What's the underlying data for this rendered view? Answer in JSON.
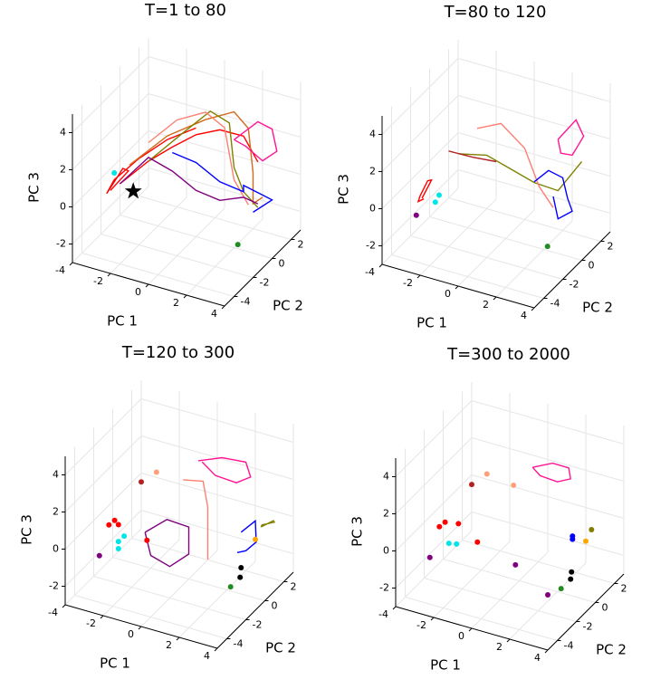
{
  "chart_data": [
    {
      "type": "scatter3d",
      "title": "T=1 to 80",
      "xlabel": "PC 1",
      "ylabel": "PC 2",
      "zlabel": "PC 3",
      "xlim": [
        -4,
        4
      ],
      "ylim": [
        -5,
        3
      ],
      "zlim": [
        -3,
        5
      ],
      "xticks": [
        -4,
        -2,
        0,
        2,
        4
      ],
      "yticks": [
        -4,
        -2,
        0,
        2
      ],
      "zticks": [
        -2,
        0,
        2,
        4
      ],
      "grid": true,
      "series": [
        {
          "color": "#ff0000",
          "mode": "lines",
          "x": [
            -3.5,
            -2.8,
            -2.6,
            -3.0,
            -3.6,
            -3.4,
            -2.5,
            -1.5,
            -0.5
          ],
          "y": [
            -2,
            -1.5,
            -2.5,
            -3,
            -2.2,
            -1.8,
            -1,
            0,
            1
          ],
          "z": [
            -0.5,
            0.5,
            1.2,
            0.3,
            -0.6,
            0,
            1,
            1.8,
            2.2
          ]
        },
        {
          "color": "#ff0000",
          "mode": "lines",
          "x": [
            -3,
            -2,
            -1,
            0,
            1,
            2,
            2.5
          ],
          "y": [
            -2,
            -1,
            -0.5,
            0,
            0.5,
            1,
            1.5
          ],
          "z": [
            0,
            1,
            1.8,
            2.5,
            2.8,
            2.5,
            1
          ]
        },
        {
          "color": "#d2691e",
          "mode": "lines",
          "x": [
            -3,
            -1.5,
            0,
            1,
            1.5,
            2,
            2.5,
            3
          ],
          "y": [
            -1,
            0,
            1,
            2,
            2.5,
            2,
            1,
            1
          ],
          "z": [
            0.5,
            2,
            2.8,
            3,
            2,
            0,
            -1,
            -0.5
          ]
        },
        {
          "color": "#808000",
          "mode": "lines",
          "x": [
            -2,
            -1,
            0,
            0.5,
            1,
            2,
            3
          ],
          "y": [
            -1,
            0.5,
            1.5,
            2.5,
            2,
            1,
            0.5
          ],
          "z": [
            1,
            2,
            3,
            2,
            0,
            -0.5,
            -0.8
          ]
        },
        {
          "color": "#ff1493",
          "mode": "lines",
          "x": [
            1,
            2,
            2.5,
            3,
            2.5,
            1.5,
            1
          ],
          "y": [
            2,
            2.5,
            3,
            2.5,
            2,
            2.2,
            2
          ],
          "z": [
            1.5,
            2.5,
            2,
            1.2,
            0.8,
            1.2,
            1.5
          ]
        },
        {
          "color": "#fa8072",
          "mode": "lines",
          "x": [
            -2,
            -1,
            0,
            0.5,
            1.5,
            2.5
          ],
          "y": [
            -1,
            0,
            1,
            2,
            1,
            0.5
          ],
          "z": [
            2,
            3,
            3.2,
            2,
            0,
            -0.8
          ]
        },
        {
          "color": "#0000ff",
          "mode": "lines",
          "x": [
            -1,
            0,
            1,
            2,
            2.5,
            3,
            3.5,
            3
          ],
          "y": [
            -0.5,
            0,
            0.5,
            1,
            0,
            0.5,
            1,
            0
          ],
          "z": [
            1.5,
            1,
            0,
            -0.5,
            0.5,
            0,
            -0.5,
            -0.8
          ]
        },
        {
          "color": "#800080",
          "mode": "lines",
          "x": [
            -3,
            -2,
            -1,
            0,
            1,
            2,
            3
          ],
          "y": [
            -2,
            -1,
            -0.5,
            0,
            0.5,
            1,
            0.5
          ],
          "z": [
            0,
            1.2,
            0.5,
            -0.5,
            -1,
            -0.8,
            -0.6
          ]
        },
        {
          "color": "#00e5e5",
          "mode": "markers",
          "x": [
            -3.3
          ],
          "y": [
            -2
          ],
          "z": [
            0.5
          ]
        },
        {
          "color": "#228b22",
          "mode": "markers",
          "x": [
            3.7
          ],
          "y": [
            -3
          ],
          "z": [
            -0.8
          ]
        },
        {
          "color": "#000000",
          "mode": "markers",
          "marker": "star",
          "x": [
            -2.3
          ],
          "y": [
            -2
          ],
          "z": [
            -0.2
          ]
        }
      ]
    },
    {
      "type": "scatter3d",
      "title": "T=80 to 120",
      "xlabel": "PC 1",
      "ylabel": "PC 2",
      "zlabel": "PC 3",
      "xlim": [
        -4,
        4
      ],
      "ylim": [
        -5,
        3
      ],
      "zlim": [
        -3,
        5
      ],
      "xticks": [
        -4,
        -2,
        0,
        2,
        4
      ],
      "yticks": [
        -4,
        -2,
        0,
        2
      ],
      "zticks": [
        -2,
        0,
        2,
        4
      ],
      "grid": true,
      "series": [
        {
          "color": "#ff0000",
          "mode": "lines",
          "x": [
            -3.4,
            -3.0,
            -2.9,
            -3.2,
            -3.5,
            -3.3
          ],
          "y": [
            -2,
            -1.8,
            -2.4,
            -2.6,
            -2.2,
            -2
          ],
          "z": [
            -0.8,
            0.2,
            0.5,
            -0.3,
            -0.9,
            -0.8
          ]
        },
        {
          "color": "#00e5e5",
          "mode": "markers",
          "x": [
            -2.7,
            -2.6
          ],
          "y": [
            -2,
            -1.8
          ],
          "z": [
            -0.8,
            -0.5
          ]
        },
        {
          "color": "#800080",
          "mode": "markers",
          "x": [
            -3.7
          ],
          "y": [
            -2
          ],
          "z": [
            -1.8
          ]
        },
        {
          "color": "#808000",
          "mode": "lines",
          "x": [
            -2,
            -1,
            0,
            1,
            2,
            3
          ],
          "y": [
            -1,
            0,
            0.5,
            1,
            1.5,
            2
          ],
          "z": [
            1.5,
            1.2,
            0.5,
            -0.2,
            -0.6,
            1
          ]
        },
        {
          "color": "#fa8072",
          "mode": "lines",
          "x": [
            -1.5,
            -0.5,
            0.5,
            1.5,
            2.5
          ],
          "y": [
            0,
            0.5,
            1,
            0.5,
            0
          ],
          "z": [
            2.5,
            2.8,
            1.5,
            0,
            -0.6
          ]
        },
        {
          "color": "#b22222",
          "mode": "lines",
          "x": [
            -2.5,
            -1.5,
            -0.5
          ],
          "y": [
            -1,
            -0.5,
            0
          ],
          "z": [
            1.5,
            1.2,
            1
          ]
        },
        {
          "color": "#0000ff",
          "mode": "lines",
          "x": [
            1.5,
            2,
            2.5,
            3,
            3.5,
            3,
            2.5
          ],
          "y": [
            0,
            0.5,
            1,
            0.5,
            0,
            -0.5,
            0
          ],
          "z": [
            0.5,
            1,
            0.5,
            -0.2,
            -0.5,
            -0.8,
            0
          ]
        },
        {
          "color": "#ff1493",
          "mode": "lines",
          "x": [
            1.5,
            2.2,
            2.8,
            2.5,
            1.8,
            1.5
          ],
          "y": [
            2.5,
            3,
            2.6,
            2,
            2.2,
            2.5
          ],
          "z": [
            1.5,
            2.5,
            2,
            1.2,
            1,
            1.5
          ]
        },
        {
          "color": "#228b22",
          "mode": "markers",
          "x": [
            3.7
          ],
          "y": [
            -3
          ],
          "z": [
            -0.8
          ]
        }
      ]
    },
    {
      "type": "scatter3d",
      "title": "T=120 to 300",
      "xlabel": "PC 1",
      "ylabel": "PC 2",
      "zlabel": "PC 3",
      "xlim": [
        -4,
        4
      ],
      "ylim": [
        -5,
        3
      ],
      "zlim": [
        -3,
        5
      ],
      "xticks": [
        -4,
        -2,
        0,
        2,
        4
      ],
      "yticks": [
        -4,
        -2,
        0,
        2
      ],
      "zticks": [
        -2,
        0,
        2,
        4
      ],
      "grid": true,
      "series": [
        {
          "color": "#ff1493",
          "mode": "lines",
          "x": [
            -0.5,
            0.5,
            1.5,
            2,
            1.5,
            0.5,
            -0.3
          ],
          "y": [
            2,
            2.5,
            3,
            2.5,
            2,
            1.8,
            2
          ],
          "z": [
            2.2,
            2.4,
            2.2,
            1.8,
            1.6,
            1.8,
            2.2
          ]
        },
        {
          "color": "#800080",
          "mode": "lines",
          "x": [
            -1.8,
            -0.9,
            0,
            0.5,
            0,
            -1,
            -1.8
          ],
          "y": [
            -1,
            -0.5,
            0,
            -1,
            -2,
            -2,
            -1
          ],
          "z": [
            -0.5,
            0.2,
            -0.2,
            -1,
            -1.3,
            -1,
            -0.5
          ]
        },
        {
          "color": "#fa8072",
          "mode": "lines",
          "x": [
            -0.8,
            0,
            0.5,
            1,
            1.5
          ],
          "y": [
            1,
            1.5,
            1,
            0,
            -1
          ],
          "z": [
            1.6,
            1.5,
            0.5,
            -0.5,
            -1
          ]
        },
        {
          "color": "#0000ff",
          "mode": "lines",
          "x": [
            2.5,
            3,
            3.3,
            3,
            2.8
          ],
          "y": [
            0.5,
            1,
            0.5,
            0,
            -0.5
          ],
          "z": [
            0,
            0.5,
            -0.3,
            -0.6,
            -0.5
          ]
        },
        {
          "color": "#808000",
          "mode": "lines",
          "x": [
            2.8,
            3.2,
            3,
            2.6,
            2.8
          ],
          "y": [
            2,
            2.5,
            3,
            2.5,
            2
          ],
          "z": [
            -0.4,
            -0.2,
            -0.6,
            -0.6,
            -0.4
          ]
        },
        {
          "color": "#ff0000",
          "mode": "markers",
          "x": [
            -3.2,
            -3.0,
            -2.9,
            -1.7
          ],
          "y": [
            -2,
            -1.8,
            -1.6,
            -1
          ],
          "z": [
            0,
            0.2,
            -0.1,
            -0.9
          ]
        },
        {
          "color": "#00e5e5",
          "mode": "markers",
          "x": [
            -2.7,
            -2.5,
            -2.6
          ],
          "y": [
            -2,
            -1.8,
            -2.2
          ],
          "z": [
            -0.75,
            -0.5,
            -1
          ]
        },
        {
          "color": "#800080",
          "mode": "markers",
          "x": [
            -3.7
          ],
          "y": [
            -2
          ],
          "z": [
            -1.8
          ]
        },
        {
          "color": "#b22222",
          "mode": "markers",
          "x": [
            -2.5
          ],
          "y": [
            0
          ],
          "z": [
            1.5
          ]
        },
        {
          "color": "#ffa07a",
          "mode": "markers",
          "x": [
            -2.2
          ],
          "y": [
            1
          ],
          "z": [
            1.6
          ]
        },
        {
          "color": "#ffa500",
          "mode": "markers",
          "x": [
            3
          ],
          "y": [
            1
          ],
          "z": [
            -0.5
          ]
        },
        {
          "color": "#000000",
          "mode": "markers",
          "x": [
            3.7,
            3.5
          ],
          "y": [
            -2,
            -1.5
          ],
          "z": [
            -0.8,
            -0.6
          ]
        },
        {
          "color": "#228b22",
          "mode": "markers",
          "x": [
            3.7
          ],
          "y": [
            -3
          ],
          "z": [
            -0.8
          ]
        }
      ]
    },
    {
      "type": "scatter3d",
      "title": "T=300 to 2000",
      "xlabel": "PC 1",
      "ylabel": "PC 2",
      "zlabel": "PC 3",
      "xlim": [
        -4,
        4
      ],
      "ylim": [
        -5,
        3
      ],
      "zlim": [
        -3,
        5
      ],
      "xticks": [
        -4,
        -2,
        0,
        2,
        4
      ],
      "yticks": [
        -4,
        -2,
        0,
        2
      ],
      "zticks": [
        -2,
        0,
        2,
        4
      ],
      "grid": true,
      "series": [
        {
          "color": "#ff1493",
          "mode": "lines",
          "x": [
            -0.3,
            0.5,
            1.2,
            1.5,
            1,
            0.2,
            -0.3
          ],
          "y": [
            2,
            2.5,
            2.8,
            2.4,
            2,
            1.8,
            2
          ],
          "z": [
            2,
            2.2,
            2,
            1.7,
            1.6,
            1.8,
            2
          ]
        },
        {
          "color": "#ff0000",
          "mode": "markers",
          "x": [
            -3.2,
            -3.0,
            -1.7,
            -2.7
          ],
          "y": [
            -2,
            -1.8,
            -1,
            -1
          ],
          "z": [
            0,
            0.2,
            -0.9,
            -0.2
          ]
        },
        {
          "color": "#00e5e5",
          "mode": "markers",
          "x": [
            -2.7,
            -2.4
          ],
          "y": [
            -2,
            -1.8
          ],
          "z": [
            -0.75,
            -0.8
          ]
        },
        {
          "color": "#800080",
          "mode": "markers",
          "x": [
            -3.7,
            -0.2,
            2.5
          ],
          "y": [
            -2,
            0,
            -2
          ],
          "z": [
            -1.8,
            -2.2,
            -2
          ]
        },
        {
          "color": "#0000ff",
          "mode": "markers",
          "x": [
            2.3,
            2.4
          ],
          "y": [
            1,
            0.8
          ],
          "z": [
            -0.6,
            -0.3
          ]
        },
        {
          "color": "#ffa500",
          "mode": "markers",
          "x": [
            3
          ],
          "y": [
            1
          ],
          "z": [
            -0.5
          ]
        },
        {
          "color": "#808000",
          "mode": "markers",
          "x": [
            2.8
          ],
          "y": [
            2
          ],
          "z": [
            -0.45
          ]
        },
        {
          "color": "#b22222",
          "mode": "markers",
          "x": [
            -2.5
          ],
          "y": [
            0
          ],
          "z": [
            1.46
          ]
        },
        {
          "color": "#ffa07a",
          "mode": "markers",
          "x": [
            -2.2,
            -0.8
          ],
          "y": [
            1,
            1
          ],
          "z": [
            1.6,
            1.4
          ]
        },
        {
          "color": "#000000",
          "mode": "markers",
          "x": [
            3.7,
            3.6
          ],
          "y": [
            -2,
            -1.7
          ],
          "z": [
            -0.8,
            -0.6
          ]
        },
        {
          "color": "#228b22",
          "mode": "markers",
          "x": [
            3.7
          ],
          "y": [
            -3
          ],
          "z": [
            -0.8
          ]
        }
      ]
    }
  ]
}
